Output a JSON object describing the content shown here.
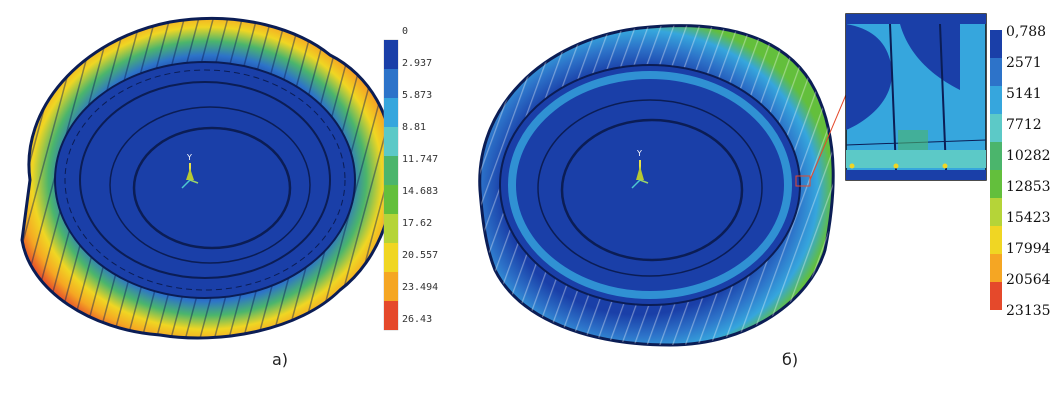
{
  "figure_a": {
    "caption": "a)",
    "axis_label": "Y",
    "legend_values": [
      "0",
      "2.937",
      "5.873",
      "8.81",
      "11.747",
      "14.683",
      "17.62",
      "20.557",
      "23.494",
      "26.43"
    ]
  },
  "figure_b": {
    "caption": "б)",
    "axis_label": "Y",
    "legend_values": [
      "0,788",
      "2571",
      "5141",
      "7712",
      "10282",
      "12853",
      "15423",
      "17994",
      "20564",
      "23135"
    ]
  },
  "colors": {
    "scale": [
      "#1a3fa8",
      "#2d73c9",
      "#36a6dd",
      "#5cc9c7",
      "#4bb56c",
      "#63bf3c",
      "#b5d438",
      "#f0d623",
      "#f5a623",
      "#e5492b"
    ],
    "background": "#ffffff"
  },
  "icons": [
    "coordinate-triad-icon",
    "zoom-callout-icon"
  ]
}
